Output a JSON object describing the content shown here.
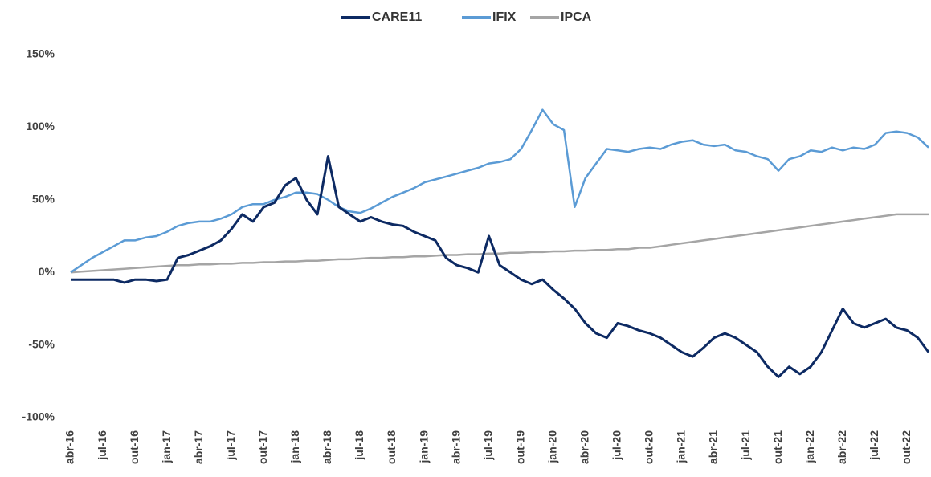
{
  "chart_data": {
    "type": "line",
    "categories": [
      "abr-16",
      null,
      null,
      "jul-16",
      null,
      null,
      "out-16",
      null,
      null,
      "jan-17",
      null,
      null,
      "abr-17",
      null,
      null,
      "jul-17",
      null,
      null,
      "out-17",
      null,
      null,
      "jan-18",
      null,
      null,
      "abr-18",
      null,
      null,
      "jul-18",
      null,
      null,
      "out-18",
      null,
      null,
      "jan-19",
      null,
      null,
      "abr-19",
      null,
      null,
      "jul-19",
      null,
      null,
      "out-19",
      null,
      null,
      "jan-20",
      null,
      null,
      "abr-20",
      null,
      null,
      "jul-20",
      null,
      null,
      "out-20",
      null,
      null,
      "jan-21",
      null,
      null,
      "abr-21",
      null,
      null,
      "jul-21",
      null,
      null,
      "out-21",
      null,
      null,
      "jan-22",
      null,
      null,
      "abr-22",
      null,
      null,
      "jul-22",
      null,
      null,
      "out-22",
      null,
      null
    ],
    "series": [
      {
        "name": "CARE11",
        "color": "#0d2a63",
        "values": [
          -5,
          -5,
          -5,
          -5,
          -5,
          -7,
          -5,
          -5,
          -6,
          -5,
          10,
          12,
          15,
          18,
          22,
          30,
          40,
          35,
          45,
          48,
          60,
          65,
          50,
          40,
          80,
          45,
          40,
          35,
          38,
          35,
          33,
          32,
          28,
          25,
          22,
          10,
          5,
          3,
          0,
          25,
          5,
          0,
          -5,
          -8,
          -5,
          -12,
          -18,
          -25,
          -35,
          -42,
          -45,
          -35,
          -37,
          -40,
          -42,
          -45,
          -50,
          -55,
          -58,
          -52,
          -45,
          -42,
          -45,
          -50,
          -55,
          -65,
          -72,
          -65,
          -70,
          -65,
          -55,
          -40,
          -25,
          -35,
          -38,
          -35,
          -32,
          -38,
          -40,
          -45,
          -55
        ]
      },
      {
        "name": "IFIX",
        "color": "#5b9bd5",
        "values": [
          0,
          5,
          10,
          14,
          18,
          22,
          22,
          24,
          25,
          28,
          32,
          34,
          35,
          35,
          37,
          40,
          45,
          47,
          47,
          50,
          52,
          55,
          55,
          54,
          50,
          45,
          42,
          41,
          44,
          48,
          52,
          55,
          58,
          62,
          64,
          66,
          68,
          70,
          72,
          75,
          76,
          78,
          85,
          98,
          112,
          102,
          98,
          45,
          65,
          75,
          85,
          84,
          83,
          85,
          86,
          85,
          88,
          90,
          91,
          88,
          87,
          88,
          84,
          83,
          80,
          78,
          70,
          78,
          80,
          84,
          83,
          86,
          84,
          86,
          85,
          88,
          96,
          97,
          96,
          93,
          86
        ]
      },
      {
        "name": "IPCA",
        "color": "#a5a5a5",
        "values": [
          0,
          0.5,
          1,
          1.5,
          2,
          2.5,
          3,
          3.5,
          4,
          4.5,
          5,
          5,
          5.5,
          5.5,
          6,
          6,
          6.5,
          6.5,
          7,
          7,
          7.5,
          7.5,
          8,
          8,
          8.5,
          9,
          9,
          9.5,
          10,
          10,
          10.5,
          10.5,
          11,
          11,
          11.5,
          12,
          12,
          12.5,
          12.5,
          13,
          13,
          13.5,
          13.5,
          14,
          14,
          14.5,
          14.5,
          15,
          15,
          15.5,
          15.5,
          16,
          16,
          17,
          17,
          18,
          19,
          20,
          21,
          22,
          23,
          24,
          25,
          26,
          27,
          28,
          29,
          30,
          31,
          32,
          33,
          34,
          35,
          36,
          37,
          38,
          39,
          40,
          40,
          40,
          40
        ]
      }
    ],
    "ylim": [
      -100,
      150
    ],
    "yticks": [
      {
        "value": -100,
        "label": "-100%"
      },
      {
        "value": -50,
        "label": "-50%"
      },
      {
        "value": 0,
        "label": "0%"
      },
      {
        "value": 50,
        "label": "50%"
      },
      {
        "value": 100,
        "label": "100%"
      },
      {
        "value": 150,
        "label": "150%"
      }
    ],
    "grid": false,
    "legend": "top"
  }
}
